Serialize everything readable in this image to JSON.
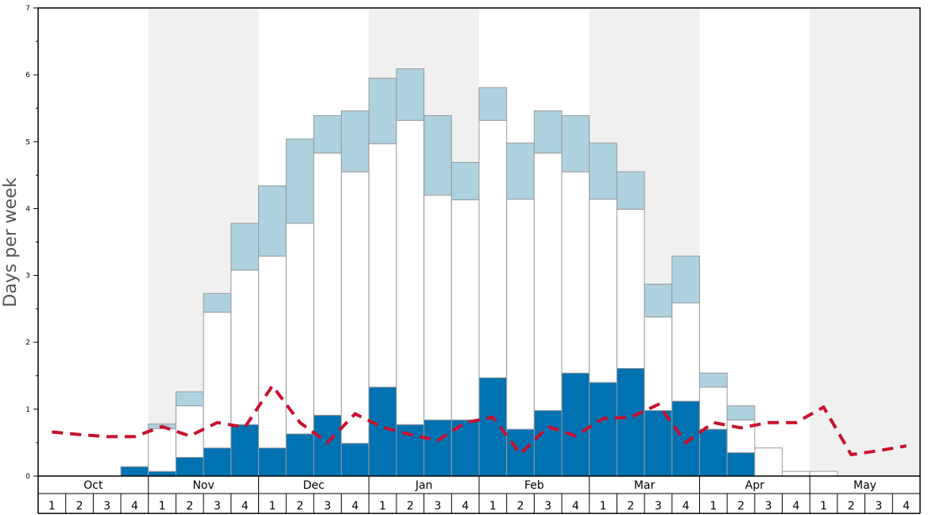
{
  "chart_data": {
    "type": "bar",
    "ylabel": "Days per week",
    "ylim": [
      0,
      7
    ],
    "yticks": [
      "0",
      "1",
      "2",
      "3",
      "4",
      "5",
      "6",
      "7"
    ],
    "months": [
      "Oct",
      "Nov",
      "Dec",
      "Jan",
      "Feb",
      "Mar",
      "Apr",
      "May"
    ],
    "week_labels": [
      "1",
      "2",
      "3",
      "4"
    ],
    "colors": {
      "dark": "#0072b2",
      "white": "#ffffff",
      "light": "#aed2df",
      "line": "#c8102e",
      "shade": "#f0f0f0",
      "bar_stroke": "#999999"
    },
    "series": [
      {
        "key": "dark",
        "values": [
          0,
          0,
          0,
          0.14,
          0.07,
          0.28,
          0.42,
          0.77,
          0.42,
          0.63,
          0.91,
          0.49,
          1.33,
          0.77,
          0.84,
          0.84,
          1.47,
          0.7,
          0.98,
          1.54,
          1.4,
          1.61,
          0.98,
          1.12,
          0.7,
          0.35,
          0,
          0,
          0,
          0,
          0,
          0
        ]
      },
      {
        "key": "white",
        "values": [
          0,
          0,
          0,
          0,
          0.64,
          0.77,
          2.03,
          2.31,
          2.87,
          3.15,
          3.92,
          4.06,
          3.64,
          4.55,
          3.36,
          3.29,
          3.85,
          3.44,
          3.85,
          3.01,
          2.74,
          2.38,
          1.4,
          1.47,
          0.63,
          0.49,
          0.42,
          0.07,
          0.07,
          0,
          0,
          0
        ]
      },
      {
        "key": "light",
        "values": [
          0,
          0,
          0,
          0,
          0.07,
          0.21,
          0.28,
          0.7,
          1.05,
          1.26,
          0.56,
          0.91,
          0.98,
          0.77,
          1.19,
          0.56,
          0.49,
          0.84,
          0.63,
          0.84,
          0.84,
          0.56,
          0.49,
          0.7,
          0.21,
          0.21,
          0,
          0,
          0,
          0,
          0,
          0
        ]
      }
    ],
    "line": [
      0.66,
      0.62,
      0.59,
      0.59,
      0.74,
      0.6,
      0.8,
      0.73,
      1.35,
      0.8,
      0.5,
      0.93,
      0.73,
      0.62,
      0.53,
      0.8,
      0.88,
      0.33,
      0.74,
      0.6,
      0.86,
      0.88,
      1.07,
      0.5,
      0.8,
      0.72,
      0.8,
      0.8,
      1.03,
      0.32,
      0.38,
      0.45
    ],
    "shaded_months": [
      1,
      3,
      5,
      7
    ],
    "grid": false,
    "legend": false
  }
}
